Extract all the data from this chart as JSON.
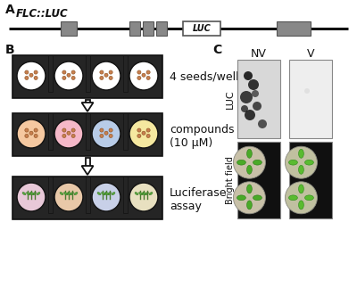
{
  "panel_A_label": "A",
  "panel_B_label": "B",
  "panel_C_label": "C",
  "gene_label": "FLC::LUC",
  "luc_label": "LUC",
  "seeds_label": "4 seeds/well",
  "compounds_label": "compounds\n(10 μM)",
  "luciferase_label": "Luciferase\nassay",
  "nv_label": "NV",
  "v_label": "V",
  "luc_row_label": "LUC",
  "bright_field_label": "Bright field",
  "bg_color": "#ffffff",
  "gray_color": "#888888",
  "black": "#111111",
  "tray_color": "#252525",
  "seed_colors_1": [
    "#ffffff",
    "#ffffff",
    "#ffffff",
    "#ffffff"
  ],
  "seed_colors_2": [
    "#f5c8a0",
    "#f5b8c8",
    "#b8cce8",
    "#f5e8a0"
  ],
  "seed_colors_3": [
    "#e8c8d8",
    "#e8c8a8",
    "#c8d0e8",
    "#e8e0c0"
  ]
}
